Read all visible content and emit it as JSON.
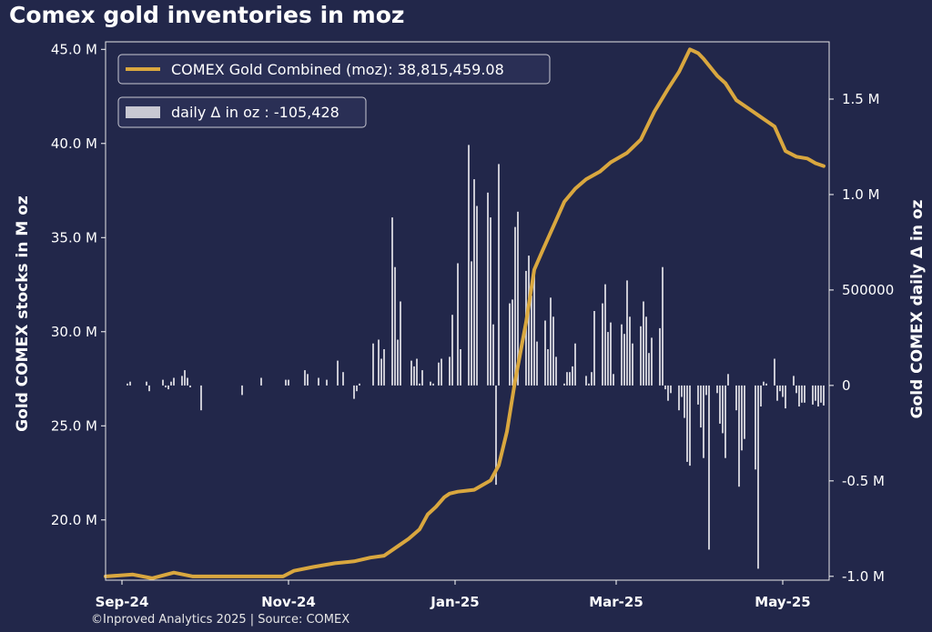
{
  "title": "Comex gold inventories in moz",
  "footer": "©Inproved Analytics 2025 | Source: COMEX",
  "colors": {
    "background": "#22274a",
    "line": "#d9a73f",
    "bars": "#c8c8d2",
    "axes": "#ffffff"
  },
  "chart_data": {
    "type": "line",
    "title": "Comex gold inventories in moz",
    "ylabel": "Gold COMEX stocks in M oz",
    "y2label": "Gold COMEX daily Δ in oz",
    "ylim": [
      16.8,
      45.4
    ],
    "y2lim": [
      -1.02,
      1.8
    ],
    "x_tick_labels": [
      "Sep-24",
      "Nov-24",
      "Jan-25",
      "Mar-25",
      "May-25"
    ],
    "x_ticks": [
      "2024-09-01",
      "2024-11-01",
      "2025-01-01",
      "2025-03-01",
      "2025-05-01"
    ],
    "xlim": [
      "2024-08-26",
      "2025-05-18"
    ],
    "y_tick_labels": [
      "20.0 M",
      "25.0 M",
      "30.0 M",
      "35.0 M",
      "40.0 M",
      "45.0 M"
    ],
    "y_ticks": [
      20,
      25,
      30,
      35,
      40,
      45
    ],
    "y2_tick_labels": [
      "-1.0 M",
      "-0.5 M",
      "0",
      "500000",
      "1.0 M",
      "1.5 M"
    ],
    "y2_ticks": [
      -1.0,
      -0.5,
      0,
      0.5,
      1.0,
      1.5
    ],
    "grid": false,
    "legend_placement": "top-left",
    "legend": [
      "COMEX Gold Combined (moz): 38,815,459.08",
      "daily Δ in oz : -105,428"
    ],
    "series": [
      {
        "name": "COMEX Gold Combined (moz): 38,815,459.08",
        "type": "line",
        "axis": "left",
        "x": [
          "2024-08-26",
          "2024-09-05",
          "2024-09-12",
          "2024-09-20",
          "2024-09-27",
          "2024-10-01",
          "2024-10-10",
          "2024-10-20",
          "2024-10-30",
          "2024-11-03",
          "2024-11-10",
          "2024-11-18",
          "2024-11-25",
          "2024-12-01",
          "2024-12-06",
          "2024-12-12",
          "2024-12-15",
          "2024-12-19",
          "2024-12-22",
          "2024-12-25",
          "2024-12-28",
          "2024-12-30",
          "2025-01-02",
          "2025-01-08",
          "2025-01-14",
          "2025-01-17",
          "2025-01-20",
          "2025-01-23",
          "2025-01-27",
          "2025-01-30",
          "2025-02-02",
          "2025-02-06",
          "2025-02-10",
          "2025-02-14",
          "2025-02-18",
          "2025-02-23",
          "2025-02-27",
          "2025-03-05",
          "2025-03-10",
          "2025-03-15",
          "2025-03-20",
          "2025-03-24",
          "2025-03-28",
          "2025-03-31",
          "2025-04-02",
          "2025-04-07",
          "2025-04-10",
          "2025-04-14",
          "2025-04-18",
          "2025-04-22",
          "2025-04-28",
          "2025-05-02",
          "2025-05-06",
          "2025-05-10",
          "2025-05-13",
          "2025-05-16"
        ],
        "values": [
          17.0,
          17.1,
          16.9,
          17.2,
          17.0,
          17.0,
          17.0,
          17.0,
          17.0,
          17.3,
          17.5,
          17.7,
          17.8,
          18.0,
          18.1,
          18.7,
          19.0,
          19.5,
          20.3,
          20.7,
          21.2,
          21.4,
          21.5,
          21.6,
          22.1,
          22.9,
          24.7,
          27.4,
          30.5,
          33.3,
          34.3,
          35.6,
          36.9,
          37.6,
          38.1,
          38.5,
          39.0,
          39.5,
          40.2,
          41.7,
          42.9,
          43.8,
          45.0,
          44.8,
          44.5,
          43.6,
          43.2,
          42.3,
          41.9,
          41.5,
          40.9,
          39.6,
          39.3,
          39.2,
          38.95,
          38.8
        ]
      },
      {
        "name": "daily Δ in oz : -105,428",
        "type": "bar",
        "axis": "right",
        "unit": "M oz",
        "x": [
          "2024-09-03",
          "2024-09-04",
          "2024-09-10",
          "2024-09-11",
          "2024-09-16",
          "2024-09-17",
          "2024-09-18",
          "2024-09-19",
          "2024-09-20",
          "2024-09-23",
          "2024-09-24",
          "2024-09-25",
          "2024-09-26",
          "2024-09-30",
          "2024-10-15",
          "2024-10-22",
          "2024-10-31",
          "2024-11-01",
          "2024-11-07",
          "2024-11-08",
          "2024-11-12",
          "2024-11-15",
          "2024-11-19",
          "2024-11-21",
          "2024-11-25",
          "2024-11-26",
          "2024-11-27",
          "2024-12-02",
          "2024-12-04",
          "2024-12-05",
          "2024-12-06",
          "2024-12-09",
          "2024-12-10",
          "2024-12-11",
          "2024-12-12",
          "2024-12-16",
          "2024-12-17",
          "2024-12-18",
          "2024-12-19",
          "2024-12-20",
          "2024-12-23",
          "2024-12-24",
          "2024-12-26",
          "2024-12-27",
          "2024-12-30",
          "2024-12-31",
          "2025-01-02",
          "2025-01-03",
          "2025-01-06",
          "2025-01-07",
          "2025-01-08",
          "2025-01-09",
          "2025-01-13",
          "2025-01-14",
          "2025-01-15",
          "2025-01-16",
          "2025-01-17",
          "2025-01-21",
          "2025-01-22",
          "2025-01-23",
          "2025-01-24",
          "2025-01-27",
          "2025-01-28",
          "2025-01-29",
          "2025-01-30",
          "2025-01-31",
          "2025-02-03",
          "2025-02-04",
          "2025-02-05",
          "2025-02-06",
          "2025-02-07",
          "2025-02-10",
          "2025-02-11",
          "2025-02-12",
          "2025-02-13",
          "2025-02-14",
          "2025-02-18",
          "2025-02-19",
          "2025-02-20",
          "2025-02-21",
          "2025-02-24",
          "2025-02-25",
          "2025-02-26",
          "2025-02-27",
          "2025-02-28",
          "2025-03-03",
          "2025-03-04",
          "2025-03-05",
          "2025-03-06",
          "2025-03-07",
          "2025-03-10",
          "2025-03-11",
          "2025-03-12",
          "2025-03-13",
          "2025-03-14",
          "2025-03-17",
          "2025-03-18",
          "2025-03-19",
          "2025-03-20",
          "2025-03-21",
          "2025-03-24",
          "2025-03-25",
          "2025-03-26",
          "2025-03-27",
          "2025-03-28",
          "2025-03-31",
          "2025-04-01",
          "2025-04-02",
          "2025-04-03",
          "2025-04-04",
          "2025-04-07",
          "2025-04-08",
          "2025-04-09",
          "2025-04-10",
          "2025-04-11",
          "2025-04-14",
          "2025-04-15",
          "2025-04-16",
          "2025-04-17",
          "2025-04-21",
          "2025-04-22",
          "2025-04-23",
          "2025-04-24",
          "2025-04-25",
          "2025-04-28",
          "2025-04-29",
          "2025-04-30",
          "2025-05-01",
          "2025-05-02",
          "2025-05-05",
          "2025-05-06",
          "2025-05-07",
          "2025-05-08",
          "2025-05-09",
          "2025-05-12",
          "2025-05-13",
          "2025-05-14",
          "2025-05-15",
          "2025-05-16"
        ],
        "values": [
          0.01,
          0.02,
          0.02,
          -0.03,
          0.03,
          -0.01,
          -0.02,
          0.02,
          0.04,
          0.05,
          0.08,
          0.04,
          -0.01,
          -0.13,
          -0.05,
          0.04,
          0.03,
          0.03,
          0.08,
          0.06,
          0.04,
          0.03,
          0.13,
          0.07,
          -0.07,
          -0.03,
          0.01,
          0.22,
          0.24,
          0.14,
          0.19,
          0.88,
          0.62,
          0.24,
          0.44,
          0.13,
          0.1,
          0.14,
          0.01,
          0.08,
          0.02,
          0.01,
          0.12,
          0.14,
          0.15,
          0.37,
          0.64,
          0.19,
          1.26,
          0.65,
          1.08,
          0.94,
          1.01,
          0.88,
          0.32,
          -0.52,
          1.16,
          0.43,
          0.45,
          0.83,
          0.91,
          0.6,
          0.68,
          0.47,
          0.6,
          0.23,
          0.34,
          0.19,
          0.46,
          0.36,
          0.15,
          0.01,
          0.07,
          0.07,
          0.1,
          0.22,
          0.05,
          0.01,
          0.07,
          0.39,
          0.43,
          0.53,
          0.28,
          0.33,
          0.06,
          0.32,
          0.27,
          0.55,
          0.36,
          0.22,
          0.31,
          0.44,
          0.36,
          0.17,
          0.25,
          0.3,
          0.62,
          -0.02,
          -0.08,
          -0.04,
          -0.13,
          -0.06,
          -0.17,
          -0.4,
          -0.42,
          -0.1,
          -0.22,
          -0.38,
          -0.05,
          -0.86,
          -0.04,
          -0.2,
          -0.25,
          -0.38,
          0.06,
          -0.13,
          -0.53,
          -0.34,
          -0.28,
          -0.44,
          -0.96,
          -0.11,
          0.02,
          0.01,
          0.14,
          -0.08,
          -0.03,
          -0.06,
          -0.12,
          0.05,
          -0.04,
          -0.11,
          -0.09,
          -0.09,
          -0.1,
          -0.08,
          -0.11,
          -0.09,
          -0.105
        ]
      }
    ]
  }
}
